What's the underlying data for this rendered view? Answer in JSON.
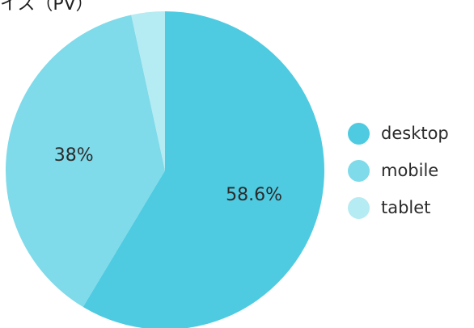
{
  "chart_data": {
    "type": "pie",
    "title": "イス（PV）",
    "slices": [
      {
        "name": "desktop",
        "value": 58.6,
        "label": "58.6%",
        "color": "#4ecbe1"
      },
      {
        "name": "mobile",
        "value": 38.0,
        "label": "38%",
        "color": "#7fdae9"
      },
      {
        "name": "tablet",
        "value": 3.4,
        "label": "",
        "color": "#b5ebf2"
      }
    ],
    "start_angle_deg": 0,
    "direction": "clockwise",
    "legend_position": "right"
  }
}
